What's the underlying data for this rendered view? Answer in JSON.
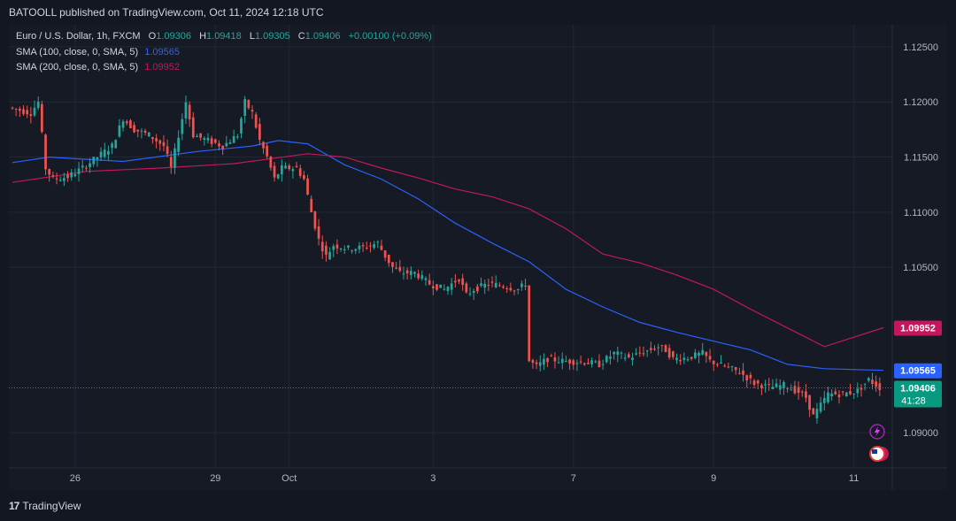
{
  "header": {
    "published": "BATOOLL published on TradingView.com, Oct 11, 2024 12:18 UTC"
  },
  "legend": {
    "symbol": "Euro / U.S. Dollar, 1h, FXCM",
    "o_label": "O",
    "o": "1.09306",
    "h_label": "H",
    "h": "1.09418",
    "l_label": "L",
    "l": "1.09305",
    "c_label": "C",
    "c": "1.09406",
    "change": "+0.00100 (+0.09%)",
    "sma100_label": "SMA (100, close, 0, SMA, 5)",
    "sma100_value": "1.09565",
    "sma200_label": "SMA (200, close, 0, SMA, 5)",
    "sma200_value": "1.09952"
  },
  "footer": {
    "brand": "TradingView"
  },
  "colors": {
    "up": "#26a69a",
    "down": "#ef5350",
    "sma100": "#2962ff",
    "sma200": "#c2185b",
    "last": "#089981"
  },
  "chart_data": {
    "type": "line",
    "title": "Euro / U.S. Dollar, 1h, FXCM",
    "ylim": [
      1.0868,
      1.127
    ],
    "y_ticks": [
      "1.12500",
      "1.12000",
      "1.11500",
      "1.11000",
      "1.10500",
      "1.09000"
    ],
    "x_ticks": [
      {
        "label": "26",
        "index": 17
      },
      {
        "label": "29",
        "index": 55
      },
      {
        "label": "Oct",
        "index": 75
      },
      {
        "label": "3",
        "index": 114
      },
      {
        "label": "7",
        "index": 152
      },
      {
        "label": "9",
        "index": 190
      },
      {
        "label": "11",
        "index": 228
      }
    ],
    "bars_total": 236,
    "price_path": [
      [
        0,
        1.1195
      ],
      [
        6,
        1.119
      ],
      [
        8,
        1.12
      ],
      [
        10,
        1.114
      ],
      [
        12,
        1.113
      ],
      [
        16,
        1.1132
      ],
      [
        20,
        1.114
      ],
      [
        24,
        1.115
      ],
      [
        28,
        1.116
      ],
      [
        31,
        1.1185
      ],
      [
        34,
        1.1175
      ],
      [
        38,
        1.117
      ],
      [
        42,
        1.116
      ],
      [
        44,
        1.114
      ],
      [
        46,
        1.117
      ],
      [
        48,
        1.12
      ],
      [
        50,
        1.117
      ],
      [
        54,
        1.1165
      ],
      [
        58,
        1.116
      ],
      [
        62,
        1.117
      ],
      [
        64,
        1.12
      ],
      [
        66,
        1.119
      ],
      [
        68,
        1.1165
      ],
      [
        70,
        1.115
      ],
      [
        72,
        1.113
      ],
      [
        74,
        1.114
      ],
      [
        78,
        1.114
      ],
      [
        80,
        1.113
      ],
      [
        82,
        1.11
      ],
      [
        84,
        1.1075
      ],
      [
        86,
        1.106
      ],
      [
        88,
        1.107
      ],
      [
        92,
        1.1067
      ],
      [
        96,
        1.1068
      ],
      [
        100,
        1.1072
      ],
      [
        102,
        1.106
      ],
      [
        104,
        1.105
      ],
      [
        106,
        1.1045
      ],
      [
        110,
        1.1045
      ],
      [
        114,
        1.1035
      ],
      [
        118,
        1.103
      ],
      [
        122,
        1.104
      ],
      [
        124,
        1.1025
      ],
      [
        126,
        1.103
      ],
      [
        130,
        1.1035
      ],
      [
        134,
        1.1033
      ],
      [
        138,
        1.103
      ],
      [
        140,
        1.1035
      ],
      [
        141,
        1.0965
      ],
      [
        143,
        1.096
      ],
      [
        146,
        1.0967
      ],
      [
        150,
        1.0965
      ],
      [
        156,
        1.0964
      ],
      [
        160,
        1.0962
      ],
      [
        164,
        1.0972
      ],
      [
        168,
        1.0968
      ],
      [
        172,
        1.0973
      ],
      [
        176,
        1.0978
      ],
      [
        178,
        1.0975
      ],
      [
        180,
        1.0967
      ],
      [
        184,
        1.0968
      ],
      [
        188,
        1.0972
      ],
      [
        190,
        1.0965
      ],
      [
        194,
        1.096
      ],
      [
        198,
        1.0955
      ],
      [
        200,
        1.095
      ],
      [
        202,
        1.0945
      ],
      [
        206,
        1.0941
      ],
      [
        210,
        1.0943
      ],
      [
        214,
        1.0937
      ],
      [
        216,
        1.0932
      ],
      [
        218,
        1.0915
      ],
      [
        220,
        1.0925
      ],
      [
        222,
        1.0935
      ],
      [
        226,
        1.0935
      ],
      [
        230,
        1.0938
      ],
      [
        233,
        1.0948
      ],
      [
        236,
        1.0941
      ]
    ],
    "series": [
      {
        "name": "SMA (100, close, 0, SMA, 5)",
        "points": [
          [
            0,
            1.1145
          ],
          [
            10,
            1.115
          ],
          [
            30,
            1.1146
          ],
          [
            50,
            1.1155
          ],
          [
            65,
            1.116
          ],
          [
            72,
            1.1165
          ],
          [
            80,
            1.1162
          ],
          [
            90,
            1.1143
          ],
          [
            100,
            1.113
          ],
          [
            110,
            1.1112
          ],
          [
            120,
            1.109
          ],
          [
            130,
            1.1072
          ],
          [
            140,
            1.1055
          ],
          [
            150,
            1.103
          ],
          [
            160,
            1.1014
          ],
          [
            170,
            1.1
          ],
          [
            180,
            1.0991
          ],
          [
            190,
            1.0983
          ],
          [
            200,
            1.0975
          ],
          [
            210,
            1.0962
          ],
          [
            220,
            1.0958
          ],
          [
            236,
            1.09565
          ]
        ]
      },
      {
        "name": "SMA (200, close, 0, SMA, 5)",
        "points": [
          [
            0,
            1.1127
          ],
          [
            20,
            1.1137
          ],
          [
            40,
            1.114
          ],
          [
            60,
            1.1144
          ],
          [
            80,
            1.1153
          ],
          [
            90,
            1.115
          ],
          [
            100,
            1.114
          ],
          [
            110,
            1.1131
          ],
          [
            120,
            1.1121
          ],
          [
            130,
            1.1114
          ],
          [
            140,
            1.1103
          ],
          [
            150,
            1.1085
          ],
          [
            160,
            1.1062
          ],
          [
            170,
            1.1054
          ],
          [
            180,
            1.1043
          ],
          [
            190,
            1.103
          ],
          [
            200,
            1.1012
          ],
          [
            210,
            1.0995
          ],
          [
            220,
            1.0978
          ],
          [
            236,
            1.09952
          ]
        ]
      }
    ],
    "price_labels": [
      {
        "value": 1.09952,
        "text": "1.09952",
        "color": "#c2185b"
      },
      {
        "value": 1.09565,
        "text": "1.09565",
        "color": "#2962ff"
      },
      {
        "value": 1.09406,
        "text": "1.09406",
        "sub": "41:28",
        "color": "#089981"
      }
    ]
  }
}
